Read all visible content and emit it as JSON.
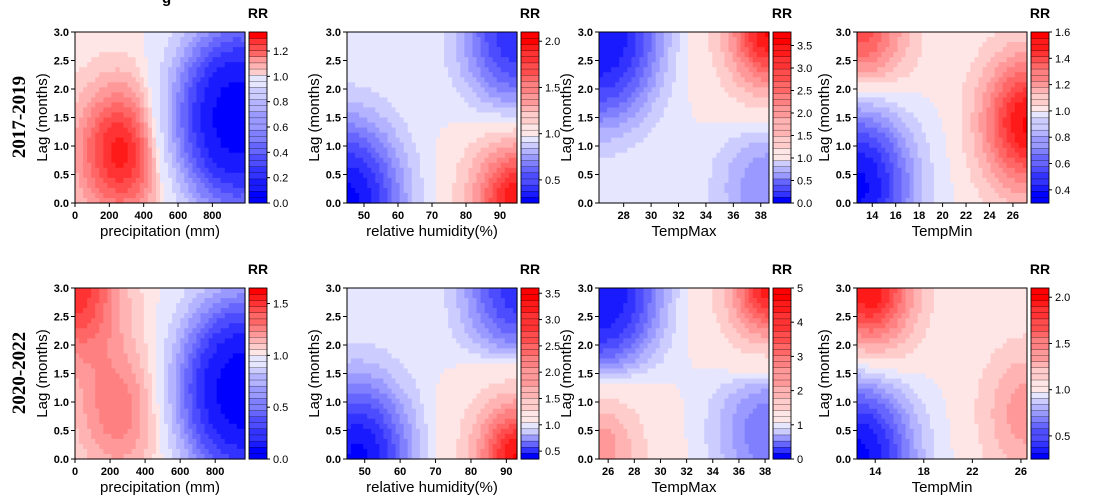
{
  "stray_text": "g",
  "colorbar_title": "RR",
  "rows": [
    {
      "row_label": "2017-2019",
      "panels": [
        {
          "xlabel": "precipitation (mm)",
          "ylabel": "Lag (months)",
          "xticks": [
            "0",
            "200",
            "400",
            "600",
            "800"
          ],
          "yticks": [
            "0.0",
            "0.5",
            "1.0",
            "1.5",
            "2.0",
            "2.5",
            "3.0"
          ],
          "cbar_ticks": [
            "0.0",
            "0.2",
            "0.4",
            "0.6",
            "0.8",
            "1.0",
            "1.2"
          ]
        },
        {
          "xlabel": "relative humidity(%)",
          "ylabel": "Lag (months)",
          "xticks": [
            "50",
            "60",
            "70",
            "80",
            "90"
          ],
          "yticks": [
            "0.0",
            "0.5",
            "1.0",
            "1.5",
            "2.0",
            "2.5",
            "3.0"
          ],
          "cbar_ticks": [
            "0.5",
            "1.0",
            "1.5",
            "2.0"
          ]
        },
        {
          "xlabel": "TempMax",
          "ylabel": "Lag (months)",
          "xticks": [
            "28",
            "30",
            "32",
            "34",
            "36",
            "38"
          ],
          "yticks": [
            "0.0",
            "0.5",
            "1.0",
            "1.5",
            "2.0",
            "2.5",
            "3.0"
          ],
          "cbar_ticks": [
            "0.0",
            "0.5",
            "1.0",
            "1.5",
            "2.0",
            "2.5",
            "3.0",
            "3.5"
          ]
        },
        {
          "xlabel": "TempMin",
          "ylabel": "Lag (months)",
          "xticks": [
            "14",
            "16",
            "18",
            "20",
            "22",
            "24",
            "26"
          ],
          "yticks": [
            "0.0",
            "0.5",
            "1.0",
            "1.5",
            "2.0",
            "2.5",
            "3.0"
          ],
          "cbar_ticks": [
            "0.4",
            "0.6",
            "0.8",
            "1.0",
            "1.2",
            "1.4",
            "1.6"
          ]
        }
      ]
    },
    {
      "row_label": "2020-2022",
      "panels": [
        {
          "xlabel": "precipitation (mm)",
          "ylabel": "Lag (months)",
          "xticks": [
            "0",
            "200",
            "400",
            "600",
            "800"
          ],
          "yticks": [
            "0.0",
            "0.5",
            "1.0",
            "1.5",
            "2.0",
            "2.5",
            "3.0"
          ],
          "cbar_ticks": [
            "0.0",
            "0.5",
            "1.0",
            "1.5"
          ]
        },
        {
          "xlabel": "relative humidity(%)",
          "ylabel": "Lag (months)",
          "xticks": [
            "50",
            "60",
            "70",
            "80",
            "90"
          ],
          "yticks": [
            "0.0",
            "0.5",
            "1.0",
            "1.5",
            "2.0",
            "2.5",
            "3.0"
          ],
          "cbar_ticks": [
            "0.5",
            "1.0",
            "1.5",
            "2.0",
            "2.5",
            "3.0",
            "3.5"
          ]
        },
        {
          "xlabel": "TempMax",
          "ylabel": "Lag (months)",
          "xticks": [
            "26",
            "28",
            "30",
            "32",
            "34",
            "36",
            "38"
          ],
          "yticks": [
            "0.0",
            "0.5",
            "1.0",
            "1.5",
            "2.0",
            "2.5",
            "3.0"
          ],
          "cbar_ticks": [
            "0",
            "1",
            "2",
            "3",
            "4",
            "5"
          ]
        },
        {
          "xlabel": "TempMin",
          "ylabel": "Lag (months)",
          "xticks": [
            "14",
            "18",
            "22",
            "26"
          ],
          "yticks": [
            "0.0",
            "0.5",
            "1.0",
            "1.5",
            "2.0",
            "2.5",
            "3.0"
          ],
          "cbar_ticks": [
            "0.5",
            "1.0",
            "1.5",
            "2.0"
          ]
        }
      ]
    }
  ],
  "chart_data": [
    {
      "type": "heatmap",
      "title": "",
      "xlabel": "precipitation (mm)",
      "ylabel": "Lag (months)",
      "colorbar_label": "RR",
      "xlim": [
        0,
        990
      ],
      "ylim": [
        0,
        3
      ],
      "x_ticks": [
        0,
        200,
        400,
        600,
        800
      ],
      "y_ticks": [
        0,
        0.5,
        1,
        1.5,
        2,
        2.5,
        3
      ],
      "color_range": [
        0.0,
        1.35
      ],
      "colorbar_ticks": [
        0.0,
        0.2,
        0.4,
        0.6,
        0.8,
        1.0,
        1.2
      ],
      "colors": {
        "low": "#0000ff",
        "mid": "#ffffff",
        "high": "#ff0000"
      },
      "features": [
        {
          "type": "peak",
          "x": 270,
          "y": 0.9,
          "value": 1.3
        },
        {
          "type": "trough",
          "x": 950,
          "y": 1.5,
          "value": 0.05
        }
      ]
    },
    {
      "type": "heatmap",
      "title": "",
      "xlabel": "relative humidity(%)",
      "ylabel": "Lag (months)",
      "colorbar_label": "RR",
      "xlim": [
        45,
        95
      ],
      "ylim": [
        0,
        3
      ],
      "x_ticks": [
        50,
        60,
        70,
        80,
        90
      ],
      "y_ticks": [
        0,
        0.5,
        1,
        1.5,
        2,
        2.5,
        3
      ],
      "color_range": [
        0.25,
        2.1
      ],
      "colorbar_ticks": [
        0.5,
        1.0,
        1.5,
        2.0
      ],
      "colors": {
        "low": "#0000ff",
        "mid": "#ffffff",
        "high": "#ff0000"
      },
      "features": [
        {
          "type": "peak",
          "x": 95,
          "y": 0.0,
          "value": 2.0
        },
        {
          "type": "trough",
          "x": 45,
          "y": 0.0,
          "value": 0.3
        },
        {
          "type": "trough",
          "x": 95,
          "y": 3.0,
          "value": 0.4
        }
      ]
    },
    {
      "type": "heatmap",
      "title": "",
      "xlabel": "TempMax",
      "ylabel": "Lag (months)",
      "colorbar_label": "RR",
      "xlim": [
        26.2,
        38.6
      ],
      "ylim": [
        0,
        3
      ],
      "x_ticks": [
        28,
        30,
        32,
        34,
        36,
        38
      ],
      "y_ticks": [
        0,
        0.5,
        1,
        1.5,
        2,
        2.5,
        3
      ],
      "color_range": [
        0.0,
        3.8
      ],
      "colorbar_ticks": [
        0.0,
        0.5,
        1.0,
        1.5,
        2.0,
        2.5,
        3.0,
        3.5
      ],
      "colors": {
        "low": "#0000ff",
        "mid": "#ffffff",
        "high": "#ff0000"
      },
      "features": [
        {
          "type": "peak",
          "x": 38.6,
          "y": 3.0,
          "value": 3.6
        },
        {
          "type": "trough",
          "x": 26.2,
          "y": 3.0,
          "value": 0.1
        },
        {
          "type": "trough",
          "x": 38.6,
          "y": 0.3,
          "value": 0.6
        }
      ]
    },
    {
      "type": "heatmap",
      "title": "",
      "xlabel": "TempMin",
      "ylabel": "Lag (months)",
      "colorbar_label": "RR",
      "xlim": [
        12.7,
        27.2
      ],
      "ylim": [
        0,
        3
      ],
      "x_ticks": [
        14,
        16,
        18,
        20,
        22,
        24,
        26
      ],
      "y_ticks": [
        0,
        0.5,
        1,
        1.5,
        2,
        2.5,
        3
      ],
      "color_range": [
        0.3,
        1.6
      ],
      "colorbar_ticks": [
        0.4,
        0.6,
        0.8,
        1.0,
        1.2,
        1.4,
        1.6
      ],
      "colors": {
        "low": "#0000ff",
        "mid": "#ffffff",
        "high": "#ff0000"
      },
      "features": [
        {
          "type": "peak",
          "x": 27.2,
          "y": 1.4,
          "value": 1.55
        },
        {
          "type": "peak",
          "x": 13.0,
          "y": 3.0,
          "value": 1.4
        },
        {
          "type": "trough",
          "x": 12.7,
          "y": 0.3,
          "value": 0.35
        }
      ]
    },
    {
      "type": "heatmap",
      "title": "",
      "xlabel": "precipitation (mm)",
      "ylabel": "Lag (months)",
      "colorbar_label": "RR",
      "xlim": [
        0,
        970
      ],
      "ylim": [
        0,
        3
      ],
      "x_ticks": [
        0,
        200,
        400,
        600,
        800
      ],
      "y_ticks": [
        0,
        0.5,
        1,
        1.5,
        2,
        2.5,
        3
      ],
      "color_range": [
        0.0,
        1.65
      ],
      "colorbar_ticks": [
        0.0,
        0.5,
        1.0,
        1.5
      ],
      "colors": {
        "low": "#0000ff",
        "mid": "#ffffff",
        "high": "#ff0000"
      },
      "features": [
        {
          "type": "peak",
          "x": 250,
          "y": 0.8,
          "value": 1.3
        },
        {
          "type": "peak",
          "x": 0,
          "y": 3.0,
          "value": 1.5
        },
        {
          "type": "trough",
          "x": 950,
          "y": 1.2,
          "value": 0.05
        }
      ]
    },
    {
      "type": "heatmap",
      "title": "",
      "xlabel": "relative humidity(%)",
      "ylabel": "Lag (months)",
      "colorbar_label": "RR",
      "xlim": [
        45,
        93
      ],
      "ylim": [
        0,
        3
      ],
      "x_ticks": [
        50,
        60,
        70,
        80,
        90
      ],
      "y_ticks": [
        0,
        0.5,
        1,
        1.5,
        2,
        2.5,
        3
      ],
      "color_range": [
        0.35,
        3.6
      ],
      "colorbar_ticks": [
        0.5,
        1.0,
        1.5,
        2.0,
        2.5,
        3.0,
        3.5
      ],
      "colors": {
        "low": "#0000ff",
        "mid": "#ffffff",
        "high": "#ff0000"
      },
      "features": [
        {
          "type": "peak",
          "x": 93,
          "y": 0.0,
          "value": 3.4
        },
        {
          "type": "trough",
          "x": 48,
          "y": 0.0,
          "value": 0.4
        },
        {
          "type": "trough",
          "x": 93,
          "y": 3.0,
          "value": 0.5
        }
      ]
    },
    {
      "type": "heatmap",
      "title": "",
      "xlabel": "TempMax",
      "ylabel": "Lag (months)",
      "colorbar_label": "RR",
      "xlim": [
        25.3,
        38.3
      ],
      "ylim": [
        0,
        3
      ],
      "x_ticks": [
        26,
        28,
        30,
        32,
        34,
        36,
        38
      ],
      "y_ticks": [
        0,
        0.5,
        1,
        1.5,
        2,
        2.5,
        3
      ],
      "color_range": [
        0.0,
        5.0
      ],
      "colorbar_ticks": [
        0,
        1,
        2,
        3,
        4,
        5
      ],
      "colors": {
        "low": "#0000ff",
        "mid": "#ffffff",
        "high": "#ff0000"
      },
      "features": [
        {
          "type": "peak",
          "x": 38.3,
          "y": 3.0,
          "value": 4.5
        },
        {
          "type": "peak",
          "x": 25.3,
          "y": 0.2,
          "value": 2.5
        },
        {
          "type": "trough",
          "x": 25.3,
          "y": 3.0,
          "value": 0.1
        },
        {
          "type": "trough",
          "x": 38.3,
          "y": 0.6,
          "value": 0.5
        }
      ]
    },
    {
      "type": "heatmap",
      "title": "",
      "xlabel": "TempMin",
      "ylabel": "Lag (months)",
      "colorbar_label": "RR",
      "xlim": [
        12.5,
        26.5
      ],
      "ylim": [
        0,
        3
      ],
      "x_ticks": [
        14,
        18,
        22,
        26
      ],
      "y_ticks": [
        0,
        0.5,
        1,
        1.5,
        2,
        2.5,
        3
      ],
      "color_range": [
        0.25,
        2.1
      ],
      "colorbar_ticks": [
        0.5,
        1.0,
        1.5,
        2.0
      ],
      "colors": {
        "low": "#0000ff",
        "mid": "#ffffff",
        "high": "#ff0000"
      },
      "features": [
        {
          "type": "peak",
          "x": 13.5,
          "y": 3.0,
          "value": 2.0
        },
        {
          "type": "peak",
          "x": 26.5,
          "y": 0.8,
          "value": 1.4
        },
        {
          "type": "trough",
          "x": 12.5,
          "y": 0.0,
          "value": 0.3
        }
      ]
    }
  ]
}
